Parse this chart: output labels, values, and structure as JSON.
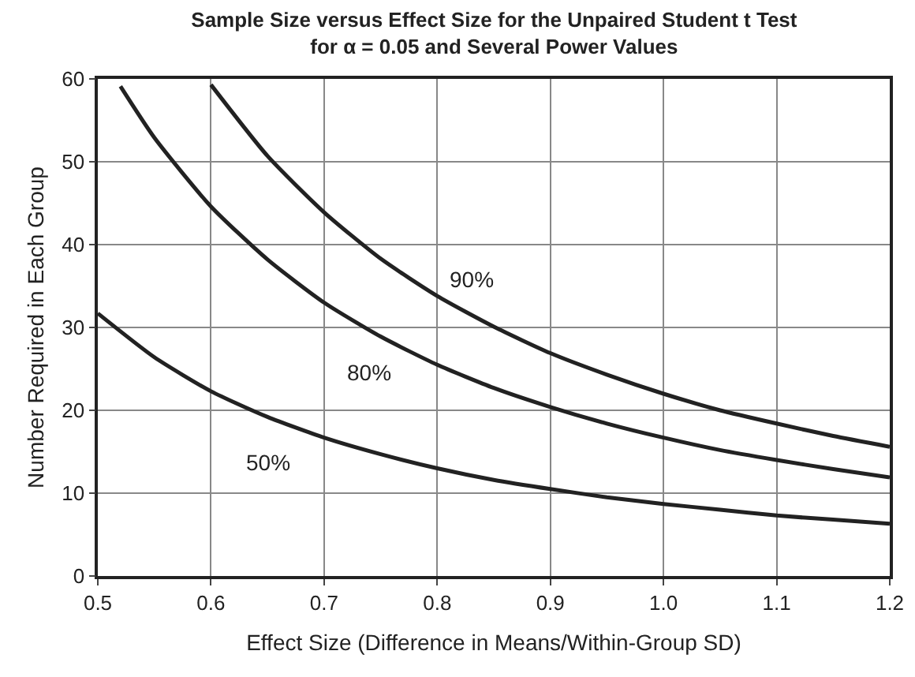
{
  "chart_data": {
    "type": "line",
    "title": "Sample Size versus Effect Size for the Unpaired Student t Test\nfor α = 0.05 and Several Power Values",
    "xlabel": "Effect Size (Difference in Means/Within-Group SD)",
    "ylabel": "Number Required in Each Group",
    "series": [
      {
        "color": "#222222",
        "x": [
          0.5,
          0.55,
          0.6,
          0.65,
          0.7,
          0.75,
          0.8,
          0.85,
          0.9,
          0.95,
          1.0,
          1.05,
          1.1,
          1.15,
          1.2
        ],
        "values": [
          31.7,
          26.4,
          22.3,
          19.2,
          16.7,
          14.7,
          13.0,
          11.6,
          10.5,
          9.5,
          8.7,
          8.0,
          7.3,
          6.8,
          6.3
        ]
      },
      {
        "color": "#222222",
        "x": [
          0.52,
          0.55,
          0.6,
          0.65,
          0.7,
          0.75,
          0.8,
          0.85,
          0.9,
          0.95,
          1.0,
          1.05,
          1.1,
          1.15,
          1.2
        ],
        "values": [
          59.1,
          52.9,
          44.6,
          38.2,
          33.0,
          28.9,
          25.5,
          22.7,
          20.4,
          18.4,
          16.7,
          15.2,
          14.0,
          12.9,
          11.9
        ]
      },
      {
        "color": "#222222",
        "x": [
          0.6,
          0.65,
          0.7,
          0.75,
          0.8,
          0.85,
          0.9,
          0.95,
          1.0,
          1.05,
          1.1,
          1.15,
          1.2
        ],
        "values": [
          59.3,
          50.7,
          43.9,
          38.3,
          33.8,
          30.1,
          26.9,
          24.3,
          22.0,
          20.0,
          18.4,
          16.9,
          15.6
        ]
      }
    ],
    "annotations": [
      {
        "text": "50%",
        "x": 0.65,
        "y": 13.8
      },
      {
        "text": "80%",
        "x": 0.74,
        "y": 24.5
      },
      {
        "text": "90%",
        "x": 0.83,
        "y": 35.8
      }
    ],
    "xlim": [
      0.5,
      1.2
    ],
    "xticks": [
      0.5,
      0.6,
      0.7,
      0.8,
      0.9,
      {
        "value": 1,
        "label": "1.0"
      },
      1.1,
      1.2
    ],
    "ylim": [
      0,
      60
    ],
    "yticks": [
      0,
      10,
      20,
      30,
      40,
      50,
      60
    ],
    "grid": true,
    "marker": "none",
    "line_style": "solid"
  }
}
